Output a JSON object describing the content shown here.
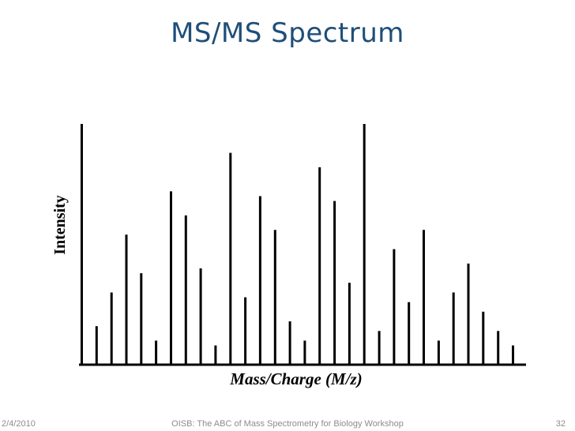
{
  "slide": {
    "title": "MS/MS Spectrum"
  },
  "footer": {
    "date": "2/4/2010",
    "text": "OISB: The ABC of Mass Spectrometry for Biology Workshop",
    "page": "32"
  },
  "colors": {
    "title": "#1f4e79",
    "bars": "#000000",
    "footer": "#8c8c8c"
  },
  "chart_data": {
    "type": "bar",
    "title": "",
    "xlabel": "Mass/Charge (M/z)",
    "ylabel": "Intensity",
    "ylim": [
      0,
      100
    ],
    "grid": false,
    "legend": "none",
    "ticks": false,
    "peaks": [
      {
        "mz": 1,
        "intensity": 100
      },
      {
        "mz": 2,
        "intensity": 16
      },
      {
        "mz": 3,
        "intensity": 30
      },
      {
        "mz": 4,
        "intensity": 54
      },
      {
        "mz": 5,
        "intensity": 38
      },
      {
        "mz": 6,
        "intensity": 10
      },
      {
        "mz": 7,
        "intensity": 72
      },
      {
        "mz": 8,
        "intensity": 62
      },
      {
        "mz": 9,
        "intensity": 40
      },
      {
        "mz": 10,
        "intensity": 8
      },
      {
        "mz": 11,
        "intensity": 88
      },
      {
        "mz": 12,
        "intensity": 28
      },
      {
        "mz": 13,
        "intensity": 70
      },
      {
        "mz": 14,
        "intensity": 56
      },
      {
        "mz": 15,
        "intensity": 18
      },
      {
        "mz": 16,
        "intensity": 10
      },
      {
        "mz": 17,
        "intensity": 82
      },
      {
        "mz": 18,
        "intensity": 68
      },
      {
        "mz": 19,
        "intensity": 34
      },
      {
        "mz": 20,
        "intensity": 100
      },
      {
        "mz": 21,
        "intensity": 14
      },
      {
        "mz": 22,
        "intensity": 48
      },
      {
        "mz": 23,
        "intensity": 26
      },
      {
        "mz": 24,
        "intensity": 56
      },
      {
        "mz": 25,
        "intensity": 10
      },
      {
        "mz": 26,
        "intensity": 30
      },
      {
        "mz": 27,
        "intensity": 42
      },
      {
        "mz": 28,
        "intensity": 22
      },
      {
        "mz": 29,
        "intensity": 14
      },
      {
        "mz": 30,
        "intensity": 8
      }
    ]
  }
}
